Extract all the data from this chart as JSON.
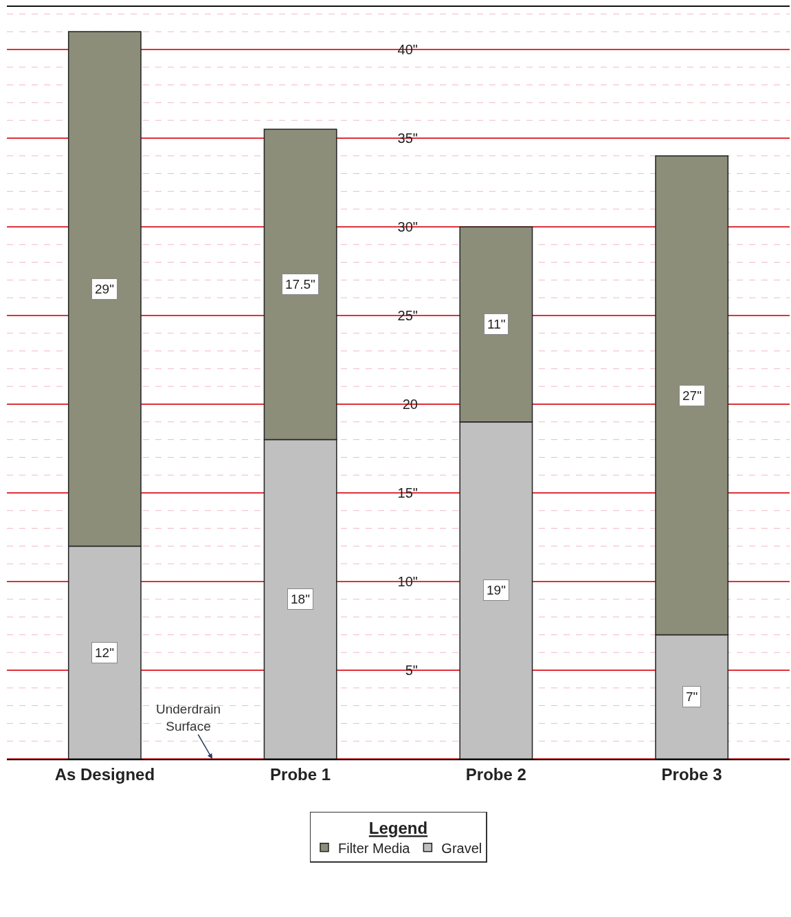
{
  "chart_data": {
    "type": "bar",
    "stacked": true,
    "categories": [
      "As Designed",
      "Probe 1",
      "Probe 2",
      "Probe 3"
    ],
    "series": [
      {
        "name": "Gravel",
        "color": "#c0c0c0",
        "values": [
          12,
          18,
          19,
          7
        ],
        "value_labels": [
          "12\"",
          "18\"",
          "19\"",
          "7\""
        ]
      },
      {
        "name": "Filter Media",
        "color": "#8c8e7a",
        "values": [
          29,
          17.5,
          11,
          27
        ],
        "value_labels": [
          "29\"",
          "17.5\"",
          "11\"",
          "27\""
        ]
      }
    ],
    "ylim": [
      0,
      42.4
    ],
    "yticks": [
      {
        "value": 0,
        "label": null
      },
      {
        "value": 5,
        "label": "5\""
      },
      {
        "value": 10,
        "label": "10\""
      },
      {
        "value": 15,
        "label": "15\""
      },
      {
        "value": 20,
        "label": "20"
      },
      {
        "value": 25,
        "label": "25\""
      },
      {
        "value": 30,
        "label": "30\""
      },
      {
        "value": 35,
        "label": "35\""
      },
      {
        "value": 40,
        "label": "40\""
      }
    ],
    "grid": "y",
    "legend": "bottom",
    "legend_title": "Legend",
    "ref_lines": [
      {
        "axis": "y",
        "value": 1
      },
      {
        "axis": "y",
        "value": 2
      },
      {
        "axis": "y",
        "value": 3
      },
      {
        "axis": "y",
        "value": 4
      },
      {
        "axis": "y",
        "value": 6
      },
      {
        "axis": "y",
        "value": 7
      },
      {
        "axis": "y",
        "value": 8
      },
      {
        "axis": "y",
        "value": 9
      },
      {
        "axis": "y",
        "value": 11
      },
      {
        "axis": "y",
        "value": 12
      },
      {
        "axis": "y",
        "value": 13
      },
      {
        "axis": "y",
        "value": 14
      },
      {
        "axis": "y",
        "value": 16
      },
      {
        "axis": "y",
        "value": 17
      },
      {
        "axis": "y",
        "value": 18
      },
      {
        "axis": "y",
        "value": 19
      },
      {
        "axis": "y",
        "value": 21
      },
      {
        "axis": "y",
        "value": 22
      },
      {
        "axis": "y",
        "value": 23
      },
      {
        "axis": "y",
        "value": 24
      },
      {
        "axis": "y",
        "value": 26
      },
      {
        "axis": "y",
        "value": 27
      },
      {
        "axis": "y",
        "value": 28
      },
      {
        "axis": "y",
        "value": 29
      },
      {
        "axis": "y",
        "value": 31
      },
      {
        "axis": "y",
        "value": 32
      },
      {
        "axis": "y",
        "value": 33
      },
      {
        "axis": "y",
        "value": 34
      },
      {
        "axis": "y",
        "value": 36
      },
      {
        "axis": "y",
        "value": 37
      },
      {
        "axis": "y",
        "value": 38
      },
      {
        "axis": "y",
        "value": 39
      },
      {
        "axis": "y",
        "value": 41
      },
      {
        "axis": "y",
        "value": 42
      }
    ],
    "annotations": [
      "Underdrain\nSurface"
    ]
  }
}
